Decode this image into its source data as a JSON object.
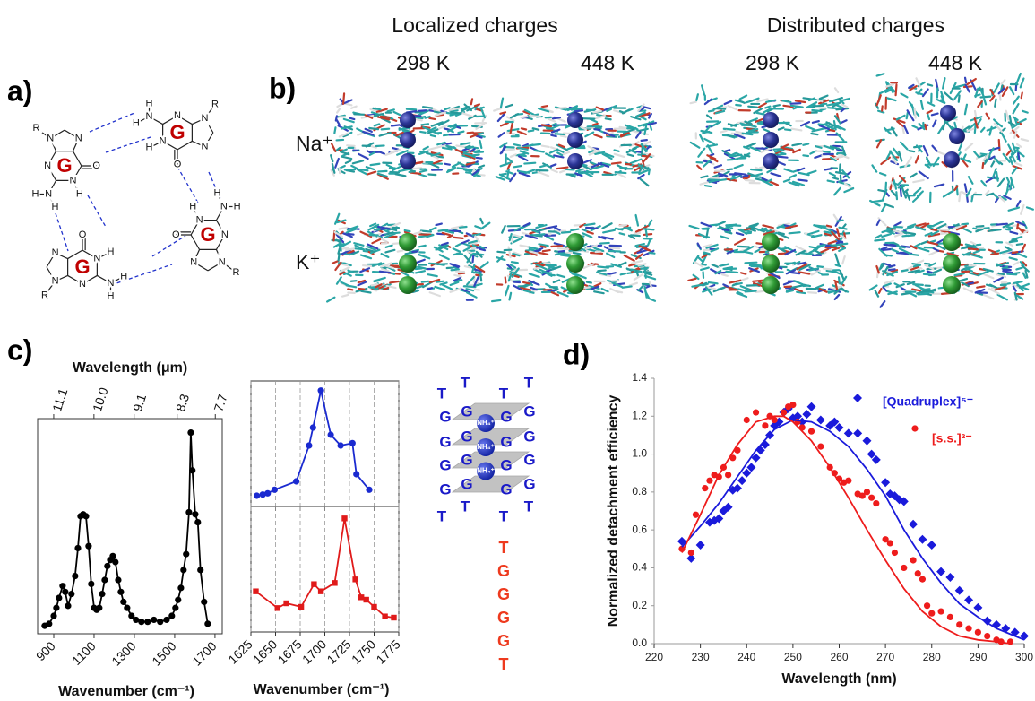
{
  "panel_labels": [
    "a)",
    "b)",
    "c)",
    "d)"
  ],
  "panel_a": {
    "units": [
      {
        "label": "G",
        "atoms": [
          "O",
          "N",
          "H",
          "N",
          "H",
          "H",
          "N",
          "N",
          "N",
          "R"
        ]
      },
      {
        "label": "G",
        "atoms": [
          "O",
          "N",
          "H",
          "N",
          "H",
          "H",
          "N",
          "N",
          "N",
          "R"
        ]
      },
      {
        "label": "G",
        "atoms": [
          "O",
          "N",
          "H",
          "N",
          "H",
          "H",
          "N",
          "N",
          "N",
          "R"
        ]
      },
      {
        "label": "G",
        "atoms": [
          "O",
          "N",
          "H",
          "N",
          "H",
          "H",
          "N",
          "N",
          "N",
          "R"
        ]
      }
    ]
  },
  "panel_b": {
    "groups": [
      "Localized charges",
      "Distributed charges"
    ],
    "temperatures": [
      "298 K",
      "448 K",
      "298 K",
      "448 K"
    ],
    "ions": [
      {
        "label": "Na⁺",
        "color": "#54468c"
      },
      {
        "label": "K⁺",
        "color": "#22a04a"
      }
    ]
  },
  "quadruplex": {
    "top": [
      "T",
      "T",
      "T",
      "T"
    ],
    "rows": [
      [
        "G",
        "G",
        "G",
        "G"
      ],
      [
        "G",
        "G",
        "G",
        "G"
      ],
      [
        "G",
        "G",
        "G",
        "G"
      ],
      [
        "G",
        "G",
        "G",
        "G"
      ]
    ],
    "ions": [
      "NH₄⁺",
      "NH₄⁺",
      "NH₄⁺"
    ],
    "bottom": [
      "T",
      "T",
      "T",
      "T"
    ],
    "color": "#1a1ac8",
    "sequence": [
      "T",
      "G",
      "G",
      "G",
      "G",
      "T"
    ],
    "sequence_color": "#ee3a1e"
  },
  "chart_data": [
    {
      "type": "line",
      "frame": true,
      "grid": false,
      "x_label": "Wavenumber (cm⁻¹)",
      "x2_label": "Wavelength (μm)",
      "xlim": [
        820,
        1736
      ],
      "xticks": [
        900,
        1100,
        1300,
        1500,
        1700
      ],
      "x2scale": "reciprocal",
      "x2lim": [
        11.61,
        7.6
      ],
      "x2ticks": [
        11.1,
        {
          "value": 10,
          "label": "10.0"
        },
        9.1,
        8.3,
        7.7
      ],
      "ylim": [
        -0.02,
        1.06
      ],
      "series": [
        {
          "color": "#000000",
          "marker": "circle",
          "mode": "lines+markers",
          "x": [
            855,
            877,
            900,
            913,
            926,
            944,
            957,
            971,
            988,
            1006,
            1020,
            1033,
            1046,
            1060,
            1073,
            1086,
            1100,
            1113,
            1126,
            1140,
            1153,
            1166,
            1180,
            1193,
            1206,
            1220,
            1233,
            1246,
            1264,
            1286,
            1308,
            1335,
            1366,
            1397,
            1428,
            1460,
            1486,
            1504,
            1517,
            1531,
            1544,
            1557,
            1571,
            1580,
            1588,
            1602,
            1615,
            1628,
            1646,
            1664
          ],
          "values": [
            0.02,
            0.03,
            0.07,
            0.11,
            0.16,
            0.22,
            0.19,
            0.12,
            0.18,
            0.27,
            0.41,
            0.57,
            0.58,
            0.57,
            0.42,
            0.23,
            0.11,
            0.1,
            0.11,
            0.18,
            0.25,
            0.32,
            0.35,
            0.37,
            0.34,
            0.25,
            0.19,
            0.14,
            0.11,
            0.07,
            0.05,
            0.04,
            0.04,
            0.05,
            0.04,
            0.05,
            0.07,
            0.11,
            0.15,
            0.21,
            0.3,
            0.38,
            0.59,
            0.99,
            0.8,
            0.58,
            0.54,
            0.3,
            0.14,
            0.03
          ]
        }
      ]
    },
    {
      "type": "line",
      "frame": true,
      "grid": true,
      "show_tick_labels": false,
      "xlim": [
        1625,
        1775
      ],
      "xticks": [
        1625,
        1650,
        1675,
        1700,
        1725,
        1750,
        1775
      ],
      "ylim": [
        0,
        1.05
      ],
      "series": [
        {
          "color": "#1a2ad0",
          "marker": "circle",
          "mode": "lines+markers",
          "x": [
            1631,
            1637,
            1642,
            1649,
            1671,
            1684,
            1688,
            1696,
            1706,
            1716,
            1728,
            1732,
            1745
          ],
          "values": [
            0.09,
            0.1,
            0.11,
            0.14,
            0.21,
            0.51,
            0.66,
            0.97,
            0.6,
            0.51,
            0.53,
            0.27,
            0.14
          ]
        }
      ]
    },
    {
      "type": "line",
      "frame": true,
      "grid": true,
      "x_label": "Wavenumber (cm⁻¹)",
      "xlim": [
        1625,
        1775
      ],
      "xticks": [
        1625,
        1650,
        1675,
        1700,
        1725,
        1750,
        1775
      ],
      "ylim": [
        0,
        1.05
      ],
      "series": [
        {
          "color": "#e01a1a",
          "marker": "square",
          "mode": "lines+markers",
          "x": [
            1630,
            1652,
            1661,
            1676,
            1689,
            1696,
            1710,
            1720,
            1731,
            1737,
            1742,
            1750,
            1761,
            1770
          ],
          "values": [
            0.34,
            0.2,
            0.24,
            0.21,
            0.4,
            0.34,
            0.41,
            0.95,
            0.44,
            0.29,
            0.27,
            0.21,
            0.13,
            0.12
          ]
        }
      ]
    },
    {
      "type": "scatter",
      "frame": false,
      "grid": false,
      "legend": "upper right",
      "x_label": "Wavelength (nm)",
      "y_label": "Normalized detachment efficiency",
      "xlim": [
        220,
        300
      ],
      "xticks": [
        220,
        230,
        240,
        250,
        260,
        270,
        280,
        290,
        300
      ],
      "ylim": [
        0,
        1.4
      ],
      "yticks": [
        {
          "value": 0,
          "label": "0.0"
        },
        0.2,
        0.4,
        0.6,
        0.8,
        {
          "value": 1,
          "label": "1.0"
        },
        1.2,
        1.4
      ],
      "series": [
        {
          "name": "[Quadruplex]⁵⁻",
          "color": "#1a1adb",
          "marker": "diamond",
          "mode": "markers",
          "x": [
            226,
            228,
            230,
            232,
            233,
            234,
            235,
            236,
            237,
            238,
            239,
            240,
            241,
            242,
            243,
            244,
            245,
            246,
            247,
            248,
            249,
            250,
            251,
            252,
            253,
            254,
            256,
            258,
            259,
            260,
            262,
            264,
            266,
            267,
            268,
            270,
            271,
            272,
            273,
            274,
            276,
            278,
            280,
            282,
            284,
            286,
            288,
            290,
            292,
            294,
            296,
            298,
            300
          ],
          "values": [
            0.54,
            0.45,
            0.52,
            0.64,
            0.65,
            0.66,
            0.7,
            0.72,
            0.81,
            0.82,
            0.86,
            0.9,
            0.93,
            0.98,
            1.02,
            1.05,
            1.1,
            1.15,
            1.17,
            1.22,
            1.24,
            1.19,
            1.2,
            1.17,
            1.21,
            1.25,
            1.18,
            1.15,
            1.17,
            1.14,
            1.11,
            1.11,
            1.07,
            1.0,
            0.97,
            0.85,
            0.79,
            0.78,
            0.76,
            0.75,
            0.63,
            0.55,
            0.52,
            0.38,
            0.35,
            0.28,
            0.23,
            0.19,
            0.12,
            0.1,
            0.08,
            0.06,
            0.04
          ]
        },
        {
          "name": "[s.s.]²⁻",
          "color": "#ee1c1c",
          "marker": "circle",
          "mode": "markers",
          "x": [
            226,
            228,
            229,
            231,
            232,
            233,
            234,
            235,
            236,
            237,
            238,
            240,
            242,
            244,
            245,
            246,
            248,
            249,
            250,
            251,
            252,
            254,
            256,
            258,
            259,
            260,
            261,
            262,
            264,
            265,
            266,
            267,
            268,
            270,
            271,
            272,
            274,
            276,
            277,
            278,
            279,
            280,
            282,
            284,
            286,
            288,
            290,
            292,
            294,
            295,
            297
          ],
          "values": [
            0.5,
            0.48,
            0.68,
            0.82,
            0.86,
            0.89,
            0.88,
            0.93,
            0.89,
            0.98,
            1.02,
            1.18,
            1.22,
            1.15,
            1.2,
            1.18,
            1.22,
            1.25,
            1.26,
            1.17,
            1.14,
            1.12,
            1.04,
            0.93,
            0.9,
            0.87,
            0.85,
            0.86,
            0.79,
            0.78,
            0.8,
            0.77,
            0.74,
            0.55,
            0.53,
            0.48,
            0.4,
            0.44,
            0.37,
            0.34,
            0.2,
            0.16,
            0.17,
            0.14,
            0.1,
            0.08,
            0.06,
            0.04,
            0.02,
            0.01,
            0.01
          ]
        },
        {
          "color": "#1a1adb",
          "mode": "lines",
          "x": [
            226,
            230,
            234,
            238,
            242,
            246,
            250,
            254,
            258,
            262,
            266,
            270,
            274,
            278,
            282,
            286,
            290,
            294,
            298,
            300
          ],
          "values": [
            0.51,
            0.62,
            0.74,
            0.88,
            1.02,
            1.13,
            1.18,
            1.17,
            1.12,
            1.04,
            0.92,
            0.78,
            0.6,
            0.45,
            0.32,
            0.21,
            0.14,
            0.08,
            0.04,
            0.02
          ]
        },
        {
          "color": "#ee1c1c",
          "mode": "lines",
          "x": [
            226,
            230,
            234,
            238,
            242,
            246,
            248,
            250,
            254,
            258,
            262,
            266,
            270,
            274,
            278,
            282,
            286,
            290,
            294,
            297
          ],
          "values": [
            0.48,
            0.68,
            0.89,
            1.05,
            1.17,
            1.2,
            1.2,
            1.17,
            1.07,
            0.93,
            0.77,
            0.6,
            0.44,
            0.29,
            0.17,
            0.09,
            0.04,
            0.02,
            0.01,
            0
          ]
        }
      ]
    }
  ]
}
